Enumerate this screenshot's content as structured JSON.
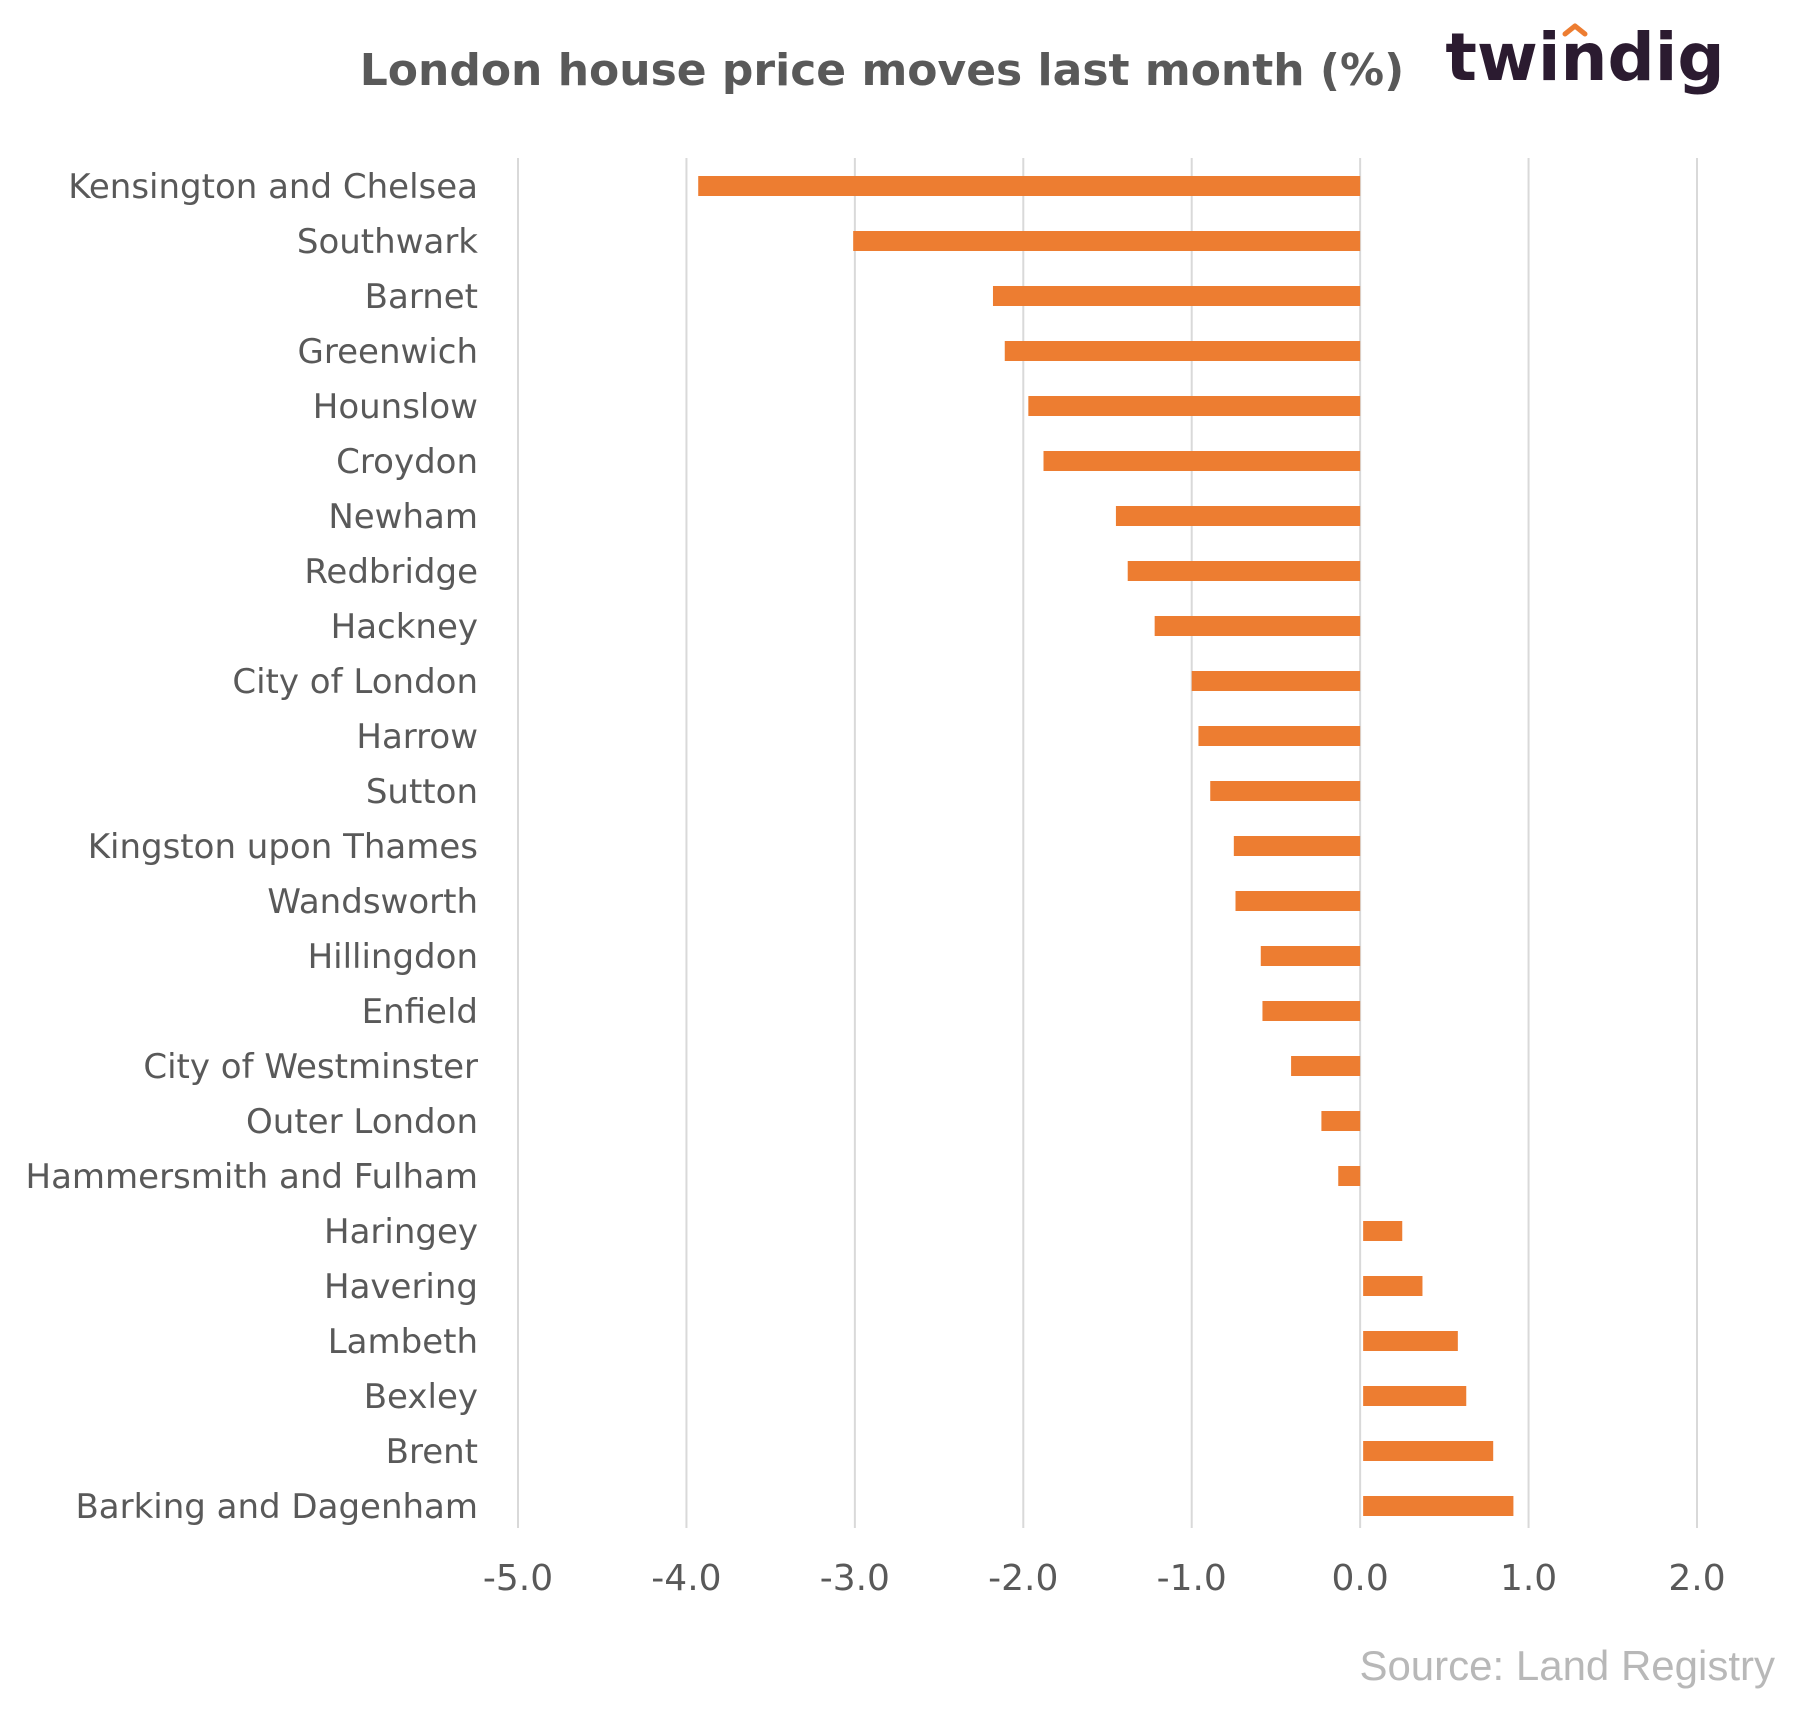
{
  "brand": {
    "logo_text": "twindig",
    "logo_text_color": "#2b1b30",
    "logo_accent_color": "#ed7d31"
  },
  "source": "Source: Land Registry",
  "colors": {
    "bar": "#ed7d31",
    "grid": "#d9d9d9",
    "text": "#595959"
  },
  "chart_data": {
    "type": "bar",
    "orientation": "horizontal",
    "title": "London house price moves last month (%)",
    "xlabel": "",
    "ylabel": "",
    "xlim": [
      -5.0,
      2.0
    ],
    "xticks": [
      "-5.0",
      "-4.0",
      "-3.0",
      "-2.0",
      "-1.0",
      "0.0",
      "1.0",
      "2.0"
    ],
    "grid": "vertical",
    "categories": [
      "Kensington and Chelsea",
      "Southwark",
      "Barnet",
      "Greenwich",
      "Hounslow",
      "Croydon",
      "Newham",
      "Redbridge",
      "Hackney",
      "City of London",
      "Harrow",
      "Sutton",
      "Kingston upon Thames",
      "Wandsworth",
      "Hillingdon",
      "Enfield",
      "City of Westminster",
      "Outer London",
      "Hammersmith and Fulham",
      "Haringey",
      "Havering",
      "Lambeth",
      "Bexley",
      "Brent",
      "Barking and Dagenham"
    ],
    "values": [
      -3.93,
      -3.01,
      -2.18,
      -2.11,
      -1.97,
      -1.88,
      -1.45,
      -1.38,
      -1.22,
      -1.0,
      -0.96,
      -0.89,
      -0.75,
      -0.74,
      -0.59,
      -0.58,
      -0.41,
      -0.23,
      -0.13,
      0.25,
      0.37,
      0.58,
      0.63,
      0.79,
      0.91
    ]
  }
}
